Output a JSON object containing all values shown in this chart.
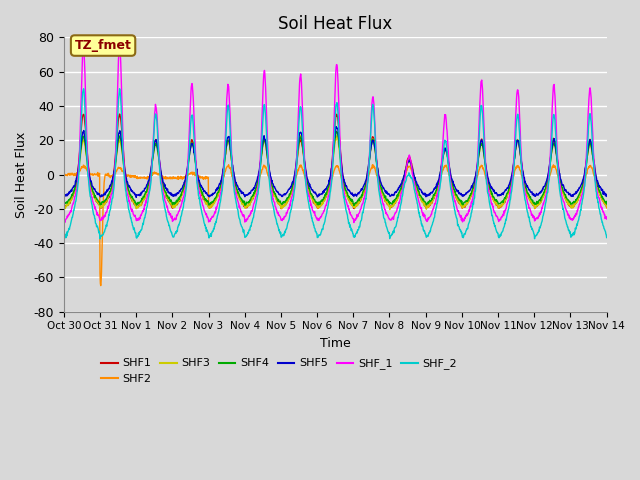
{
  "title": "Soil Heat Flux",
  "xlabel": "Time",
  "ylabel": "Soil Heat Flux",
  "ylim": [
    -80,
    80
  ],
  "background_color": "#dcdcdc",
  "plot_bg_color": "#dcdcdc",
  "annotation_label": "TZ_fmet",
  "series": [
    {
      "name": "SHF1",
      "color": "#cc0000"
    },
    {
      "name": "SHF2",
      "color": "#ff8c00"
    },
    {
      "name": "SHF3",
      "color": "#cccc00"
    },
    {
      "name": "SHF4",
      "color": "#00aa00"
    },
    {
      "name": "SHF5",
      "color": "#0000cc"
    },
    {
      "name": "SHF_1",
      "color": "#ff00ff"
    },
    {
      "name": "SHF_2",
      "color": "#00cccc"
    }
  ],
  "tick_labels": [
    "Oct 30",
    "Oct 31",
    "Nov 1",
    "Nov 2",
    "Nov 3",
    "Nov 4",
    "Nov 5",
    "Nov 6",
    "Nov 7",
    "Nov 8",
    "Nov 9",
    "Nov 10",
    "Nov 11",
    "Nov 12",
    "Nov 13",
    "Nov 14"
  ],
  "yticks": [
    -80,
    -60,
    -40,
    -20,
    0,
    20,
    40,
    60,
    80
  ],
  "n_days": 15,
  "pts_per_hour": 4
}
